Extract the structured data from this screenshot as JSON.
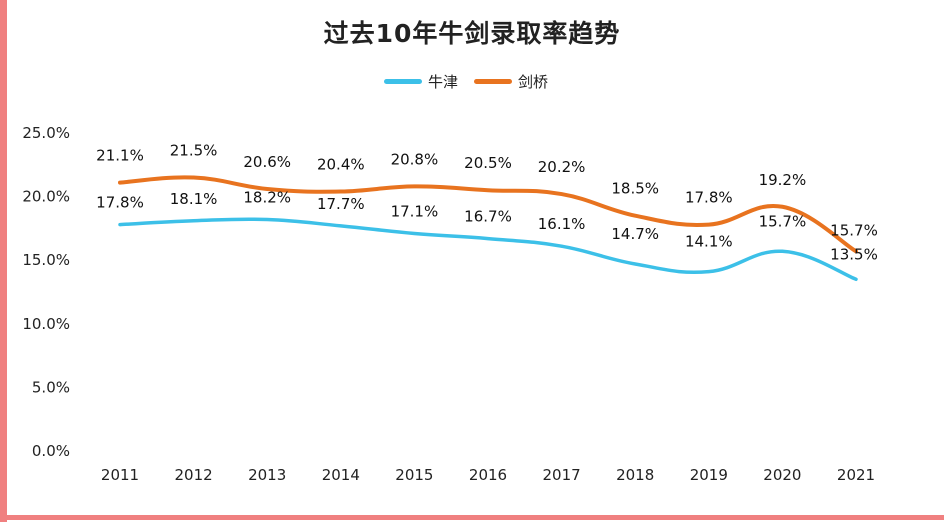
{
  "title": "过去10年牛剑录取率趋势",
  "colors": {
    "oxford": "#3cc0e8",
    "cambridge": "#e8731f",
    "accent": "#f08080"
  },
  "chart_data": {
    "type": "line",
    "title": "过去10年牛剑录取率趋势",
    "x": [
      "2011",
      "2012",
      "2013",
      "2014",
      "2015",
      "2016",
      "2017",
      "2018",
      "2019",
      "2020",
      "2021"
    ],
    "series": [
      {
        "name": "牛津",
        "color": "#3cc0e8",
        "values": [
          17.8,
          18.1,
          18.2,
          17.7,
          17.1,
          16.7,
          16.1,
          14.7,
          14.1,
          15.7,
          13.5
        ],
        "labels": [
          "17.8%",
          "18.1%",
          "18.2%",
          "17.7%",
          "17.1%",
          "16.7%",
          "16.1%",
          "14.7%",
          "14.1%",
          "15.7%",
          "13.5%"
        ]
      },
      {
        "name": "剑桥",
        "color": "#e8731f",
        "values": [
          21.1,
          21.5,
          20.6,
          20.4,
          20.8,
          20.5,
          20.2,
          18.5,
          17.8,
          19.2,
          15.7
        ],
        "labels": [
          "21.1%",
          "21.5%",
          "20.6%",
          "20.4%",
          "20.8%",
          "20.5%",
          "20.2%",
          "18.5%",
          "17.8%",
          "19.2%",
          "15.7%"
        ]
      }
    ],
    "y_ticks": [
      "0.0%",
      "5.0%",
      "10.0%",
      "15.0%",
      "20.0%",
      "25.0%"
    ],
    "ylim": [
      0,
      25
    ],
    "grid": false,
    "legend_position": "top-center"
  }
}
